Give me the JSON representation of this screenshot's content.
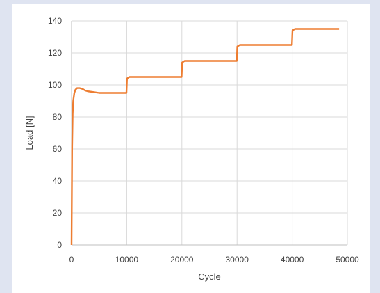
{
  "chart_data": {
    "type": "line",
    "title": "",
    "xlabel": "Cycle",
    "ylabel": "Load [N]",
    "xlim": [
      0,
      50000
    ],
    "ylim": [
      0,
      140
    ],
    "xticks": [
      0,
      10000,
      20000,
      30000,
      40000,
      50000
    ],
    "yticks": [
      0,
      20,
      40,
      60,
      80,
      100,
      120,
      140
    ],
    "grid": true,
    "colors": {
      "line": "#ed7d31",
      "grid": "#d9d9d9",
      "axis": "#bfbfbf",
      "text": "#404040"
    },
    "series": [
      {
        "x": [
          0,
          100,
          200,
          300,
          500,
          700,
          1000,
          1500,
          2000,
          2500,
          3000,
          4000,
          5000,
          6000,
          8000,
          9950,
          10050,
          10500,
          12000,
          15000,
          18000,
          19950,
          20050,
          20500,
          22000,
          25000,
          28000,
          29950,
          30050,
          30500,
          32000,
          35000,
          38000,
          39950,
          40050,
          40500,
          42000,
          45000,
          48500
        ],
        "y": [
          0,
          60,
          82,
          90,
          95,
          97,
          98,
          98,
          97.5,
          96.5,
          96,
          95.5,
          95,
          95,
          95,
          95,
          104,
          105,
          105,
          105,
          105,
          105,
          114,
          115,
          115,
          115,
          115,
          115,
          124,
          125,
          125,
          125,
          125,
          125,
          134,
          135,
          135,
          135,
          135
        ]
      }
    ]
  }
}
